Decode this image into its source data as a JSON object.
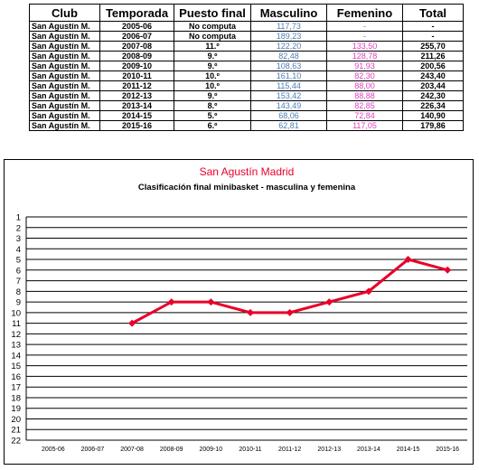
{
  "table": {
    "headers": [
      "Club",
      "Temporada",
      "Puesto final",
      "Masculino",
      "Femenino",
      "Total"
    ],
    "rows": [
      [
        "San Agustín M.",
        "2005-06",
        "No computa",
        "117,73",
        "-",
        "-"
      ],
      [
        "San Agustín M.",
        "2006-07",
        "No computa",
        "189,23",
        "-",
        "-"
      ],
      [
        "San Agustín M.",
        "2007-08",
        "11.º",
        "122,20",
        "133,50",
        "255,70"
      ],
      [
        "San Agustín M.",
        "2008-09",
        "9.º",
        "82,48",
        "128,78",
        "211,26"
      ],
      [
        "San Agustín M.",
        "2009-10",
        "9.º",
        "108,63",
        "91,93",
        "200,56"
      ],
      [
        "San Agustín M.",
        "2010-11",
        "10.º",
        "161,10",
        "82,30",
        "243,40"
      ],
      [
        "San Agustín M.",
        "2011-12",
        "10.º",
        "115,44",
        "88,00",
        "203,44"
      ],
      [
        "San Agustín M.",
        "2012-13",
        "9.º",
        "153,42",
        "88,88",
        "242,30"
      ],
      [
        "San Agustín M.",
        "2013-14",
        "8.º",
        "143,49",
        "82,85",
        "226,34"
      ],
      [
        "San Agustín M.",
        "2014-15",
        "5.º",
        "68,06",
        "72,84",
        "140,90"
      ],
      [
        "San Agustín M.",
        "2015-16",
        "6.º",
        "62,81",
        "117,05",
        "179,86"
      ]
    ]
  },
  "chart_data": {
    "type": "line",
    "title": "San Agustín Madrid",
    "subtitle": "Clasificación  final minibasket - masculina  y femenina",
    "xlabel": "",
    "ylabel": "",
    "categories": [
      "2005-06",
      "2006-07",
      "2007-08",
      "2008-09",
      "2009-10",
      "2010-11",
      "2011-12",
      "2012-13",
      "2013-14",
      "2014-15",
      "2015-16"
    ],
    "series": [
      {
        "values": [
          null,
          null,
          11,
          9,
          9,
          10,
          10,
          9,
          8,
          5,
          6
        ]
      }
    ],
    "ylim": [
      1,
      22
    ],
    "y_inverted": true,
    "y_ticks": [
      1,
      2,
      3,
      4,
      5,
      6,
      7,
      8,
      9,
      10,
      11,
      12,
      13,
      14,
      15,
      16,
      17,
      18,
      19,
      20,
      21,
      22
    ],
    "grid": true,
    "legend": "none",
    "colors": {
      "line": "#e8002a",
      "title": "#e8002a",
      "grid": "#000000"
    }
  }
}
